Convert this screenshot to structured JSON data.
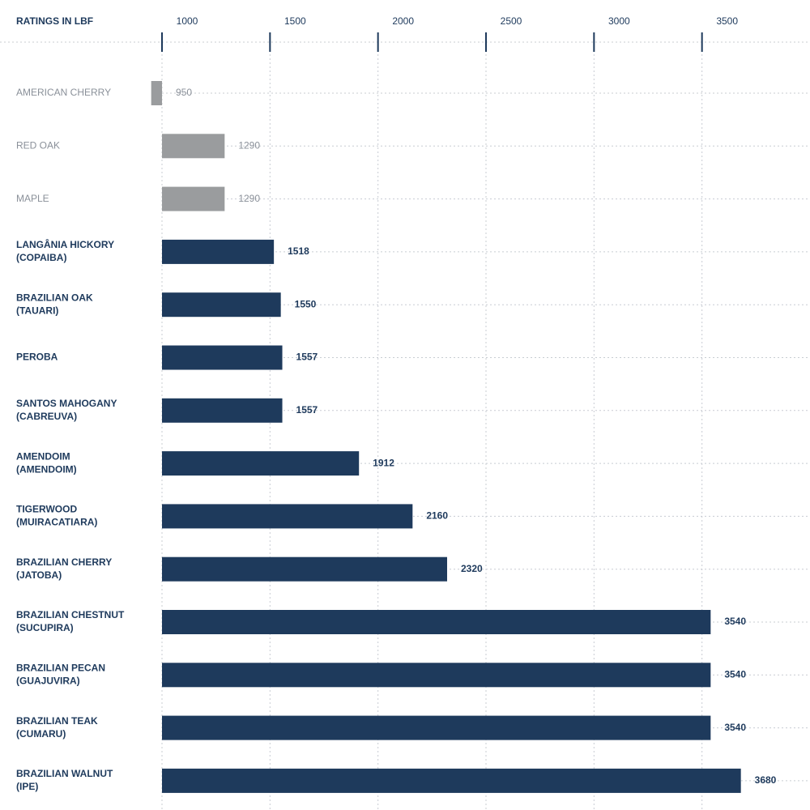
{
  "chart_data": {
    "type": "bar",
    "orientation": "horizontal",
    "title": "RATINGS IN LBF",
    "categories": [
      [
        "AMERICAN CHERRY"
      ],
      [
        "RED OAK"
      ],
      [
        "MAPLE"
      ],
      [
        "LANGÂNIA HICKORY",
        "(COPAIBA)"
      ],
      [
        "BRAZILIAN OAK",
        "(TAUARI)"
      ],
      [
        "PEROBA"
      ],
      [
        "SANTOS MAHOGANY",
        "(CABREUVA)"
      ],
      [
        "AMENDOIM",
        "(AMENDOIM)"
      ],
      [
        "TIGERWOOD",
        "(MUIRACATIARA)"
      ],
      [
        "BRAZILIAN CHERRY",
        "(JATOBA)"
      ],
      [
        "BRAZILIAN CHESTNUT",
        "(SUCUPIRA)"
      ],
      [
        "BRAZILIAN PECAN",
        "(GUAJUVIRA)"
      ],
      [
        "BRAZILIAN TEAK",
        "(CUMARU)"
      ],
      [
        "BRAZILIAN WALNUT",
        "(IPE)"
      ]
    ],
    "values": [
      950,
      1290,
      1290,
      1518,
      1550,
      1557,
      1557,
      1912,
      2160,
      2320,
      3540,
      3540,
      3540,
      3680
    ],
    "colors": [
      "#9a9c9e",
      "#9a9c9e",
      "#9a9c9e",
      "#1e3a5c",
      "#1e3a5c",
      "#1e3a5c",
      "#1e3a5c",
      "#1e3a5c",
      "#1e3a5c",
      "#1e3a5c",
      "#1e3a5c",
      "#1e3a5c",
      "#1e3a5c",
      "#1e3a5c"
    ],
    "xlim": [
      1000,
      4000
    ],
    "xticks": [
      1000,
      1500,
      2000,
      2500,
      3000,
      3500
    ],
    "grid": true
  }
}
